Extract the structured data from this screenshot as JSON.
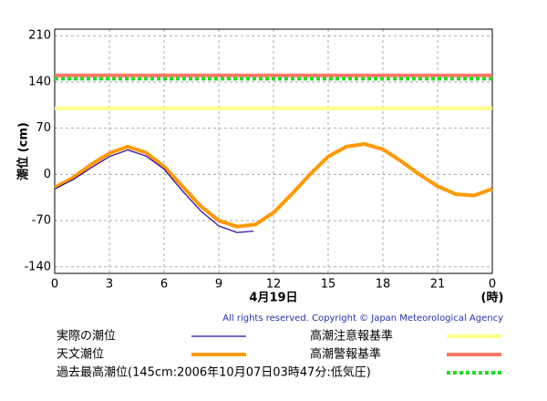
{
  "chart_data": {
    "type": "line",
    "ylabel": "潮位 (cm)",
    "xlabel": "4月19日",
    "xunit": "(時)",
    "copyright": "All rights reserved. Copyright © Japan Meteorological Agency",
    "xlim": [
      0,
      24
    ],
    "xticks": [
      0,
      3,
      6,
      9,
      12,
      15,
      18,
      21,
      {
        "value": 24,
        "label": "0"
      }
    ],
    "ylim": [
      -150,
      220
    ],
    "yticks": [
      -140,
      -70,
      0,
      70,
      140,
      210
    ],
    "grid": true,
    "series": [
      {
        "name": "実際の潮位",
        "color": "#3311aa",
        "x": [
          0,
          1,
          2,
          3,
          4,
          5,
          6,
          7,
          8,
          9,
          10,
          10.9
        ],
        "values": [
          -22,
          -8,
          10,
          27,
          37,
          28,
          8,
          -25,
          -55,
          -78,
          -88,
          -86
        ]
      },
      {
        "name": "天文潮位",
        "color": "#ff9900",
        "x": [
          0,
          1,
          2,
          3,
          4,
          5,
          6,
          7,
          8,
          9,
          10,
          11,
          12,
          13,
          14,
          15,
          16,
          17,
          18,
          19,
          20,
          21,
          22,
          23,
          24
        ],
        "values": [
          -20,
          -5,
          15,
          32,
          42,
          33,
          12,
          -18,
          -48,
          -70,
          -79,
          -76,
          -58,
          -30,
          0,
          27,
          42,
          46,
          38,
          20,
          0,
          -18,
          -30,
          -32,
          -22
        ]
      }
    ],
    "reference_lines": [
      {
        "name": "高潮注意報基準",
        "color": "#ffff88",
        "value": 100,
        "style": "solid"
      },
      {
        "name": "高潮警報基準",
        "color": "#ff7766",
        "value": 150,
        "style": "solid"
      },
      {
        "name": "過去最高潮位(145cm:2006年10月07日03時47分:低気圧)",
        "color": "#22dd22",
        "value": 145,
        "style": "dotted"
      }
    ]
  }
}
